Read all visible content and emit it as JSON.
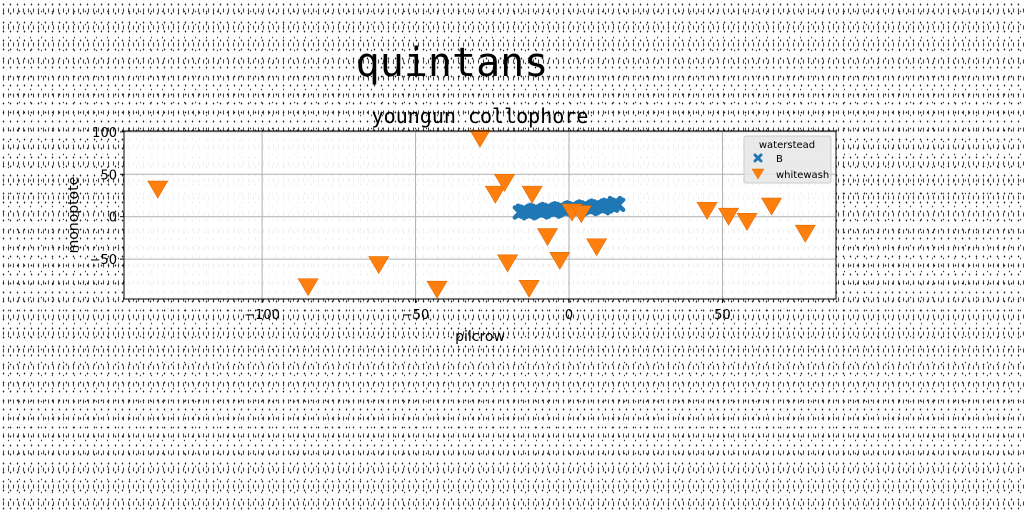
{
  "figure_title": "quintans",
  "chart_data": {
    "type": "scatter",
    "title": "youngun collophore",
    "xlabel": "pilcrow",
    "ylabel": "monoptote",
    "xlim": [
      -145,
      87
    ],
    "ylim": [
      -97,
      101
    ],
    "xticks": [
      -100,
      -50,
      0,
      50
    ],
    "yticks": [
      -50,
      0,
      50,
      100
    ],
    "grid": true,
    "legend": {
      "title": "waterstead",
      "placement": "top-right"
    },
    "series": [
      {
        "name": "B",
        "marker": "x-thick",
        "color": "#1f77b4",
        "x": [
          -16,
          -14,
          -12,
          -10,
          -8,
          -6,
          -4,
          -2,
          0,
          2,
          4,
          6,
          8,
          10,
          12,
          14,
          16,
          -15,
          -11,
          -7,
          -3,
          1,
          5,
          9,
          13,
          15,
          -13,
          -9,
          -5,
          -1,
          3,
          7,
          11
        ],
        "y": [
          5,
          6,
          6,
          7,
          7,
          8,
          8,
          9,
          9,
          10,
          10,
          11,
          11,
          12,
          12,
          13,
          14,
          7,
          8,
          9,
          10,
          11,
          12,
          13,
          14,
          16,
          4,
          5,
          6,
          7,
          8,
          9,
          10
        ]
      },
      {
        "name": "whitewash",
        "marker": "triangle-down",
        "color": "#ff7f0e",
        "x": [
          -134,
          -85,
          -62,
          -43,
          -29,
          -24,
          -21,
          -20,
          -12,
          -13,
          -7,
          -3,
          1,
          4,
          9,
          45,
          52,
          58,
          66,
          77
        ],
        "y": [
          31,
          -84,
          -58,
          -87,
          91,
          25,
          39,
          -56,
          25,
          -86,
          -25,
          -53,
          4,
          2,
          -37,
          6,
          -1,
          -7,
          11,
          -21
        ]
      }
    ]
  }
}
